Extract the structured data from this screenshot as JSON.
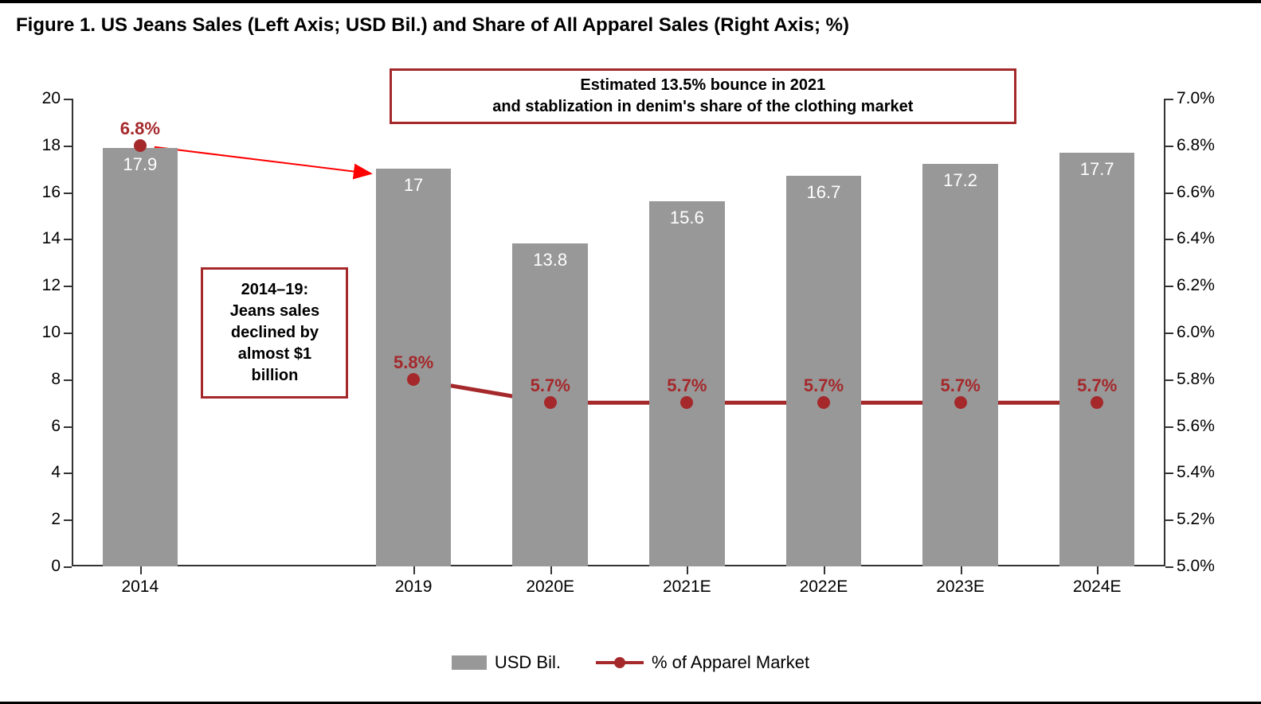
{
  "title": "Figure 1. US Jeans Sales (Left Axis; USD Bil.) and Share of All Apparel Sales (Right Axis; %)",
  "chart": {
    "type": "bar+line",
    "background_color": "#ffffff",
    "categories": [
      "2014",
      "2019",
      "2020E",
      "2021E",
      "2022E",
      "2023E",
      "2024E"
    ],
    "category_gap_after_first": true,
    "bars": {
      "values": [
        17.9,
        17,
        13.8,
        15.6,
        16.7,
        17.2,
        17.7
      ],
      "value_labels": [
        "17.9",
        "17",
        "13.8",
        "15.6",
        "16.7",
        "17.2",
        "17.7"
      ],
      "color": "#989898",
      "value_label_color": "#ffffff",
      "value_label_fontsize": 22,
      "bar_width_fraction": 0.55
    },
    "line": {
      "values": [
        6.8,
        5.8,
        5.7,
        5.7,
        5.7,
        5.7,
        5.7
      ],
      "value_labels": [
        "6.8%",
        "5.8%",
        "5.7%",
        "5.7%",
        "5.7%",
        "5.7%",
        "5.7%"
      ],
      "color": "#a5282b",
      "line_width": 5,
      "marker_size": 16,
      "marker_label_fontsize": 22,
      "skip_segment_0_to_1": true
    },
    "left_axis": {
      "min": 0,
      "max": 20,
      "step": 2,
      "labels": [
        "0",
        "2",
        "4",
        "6",
        "8",
        "10",
        "12",
        "14",
        "16",
        "18",
        "20"
      ],
      "label_fontsize": 21
    },
    "right_axis": {
      "min": 5.0,
      "max": 7.0,
      "step": 0.2,
      "labels": [
        "5.0%",
        "5.2%",
        "5.4%",
        "5.6%",
        "5.8%",
        "6.0%",
        "6.2%",
        "6.4%",
        "6.6%",
        "6.8%",
        "7.0%"
      ],
      "label_fontsize": 21
    },
    "axis_color": "#333333",
    "annotations": {
      "top_box": {
        "text_line1": "Estimated 13.5% bounce in 2021",
        "text_line2": "and stablization in denim's share of the clothing market",
        "border_color": "#a5282b",
        "text_color": "#000000",
        "fontsize": 20
      },
      "left_box": {
        "text": "2014–19:\nJeans sales\ndeclined by\nalmost $1\nbillion",
        "border_color": "#a5282b",
        "text_color": "#000000",
        "fontsize": 20
      },
      "arrow": {
        "color": "#ff0000",
        "from_category_index": 0,
        "to_category_index": 1
      }
    }
  },
  "legend": {
    "items": [
      {
        "type": "bar",
        "label": "USD Bil.",
        "color": "#989898"
      },
      {
        "type": "line",
        "label": "% of Apparel Market",
        "color": "#a5282b"
      }
    ],
    "fontsize": 22
  }
}
